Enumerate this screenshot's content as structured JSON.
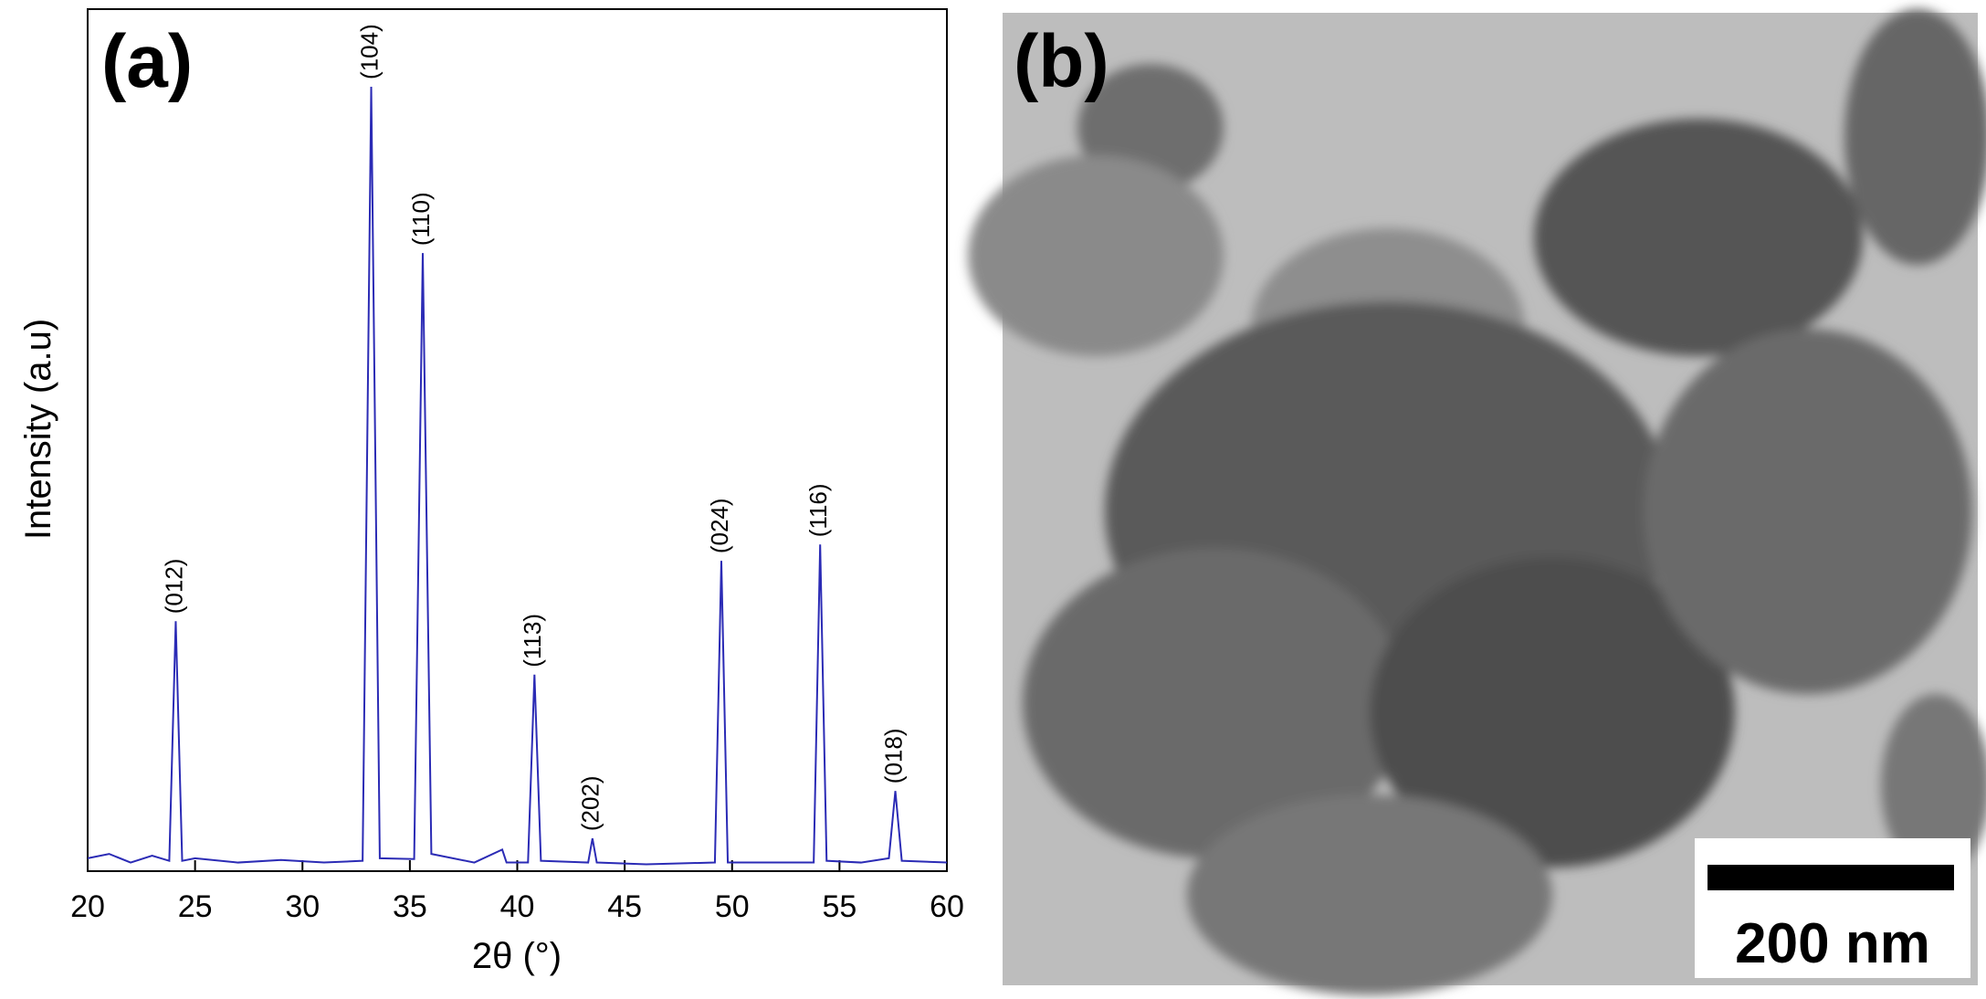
{
  "chart_data": {
    "type": "line",
    "panel_label": "(a)",
    "xlabel": "2θ (°)",
    "ylabel": "Intensity (a.u)",
    "x": [
      20,
      21,
      22,
      23,
      23.8,
      24.1,
      24.4,
      25,
      27,
      29,
      31,
      32.8,
      33.2,
      33.6,
      35.2,
      35.6,
      36.0,
      38,
      39.3,
      39.5,
      40.5,
      40.8,
      41.1,
      43.3,
      43.5,
      43.7,
      46,
      49.2,
      49.5,
      49.8,
      52,
      53.8,
      54.1,
      54.4,
      56,
      57.3,
      57.6,
      57.9,
      60
    ],
    "series": [
      {
        "color": "#2b2bb5",
        "values": [
          1.5,
          2,
          1,
          1.8,
          1.2,
          29,
          1.2,
          1.5,
          1,
          1.3,
          1,
          1.2,
          91,
          1.5,
          1.4,
          71.7,
          2,
          1,
          2.5,
          1,
          1,
          22.8,
          1.2,
          1,
          3.8,
          1,
          0.8,
          1,
          36,
          1,
          1,
          1,
          37.9,
          1.2,
          1,
          1.5,
          9.3,
          1.2,
          1
        ]
      }
    ],
    "annotations": [
      {
        "text": "(012)",
        "x": 24.1
      },
      {
        "text": "(104)",
        "x": 33.2
      },
      {
        "text": "(110)",
        "x": 35.6
      },
      {
        "text": "(113)",
        "x": 40.8
      },
      {
        "text": "(202)",
        "x": 43.5
      },
      {
        "text": "(024)",
        "x": 49.5
      },
      {
        "text": "(116)",
        "x": 54.1
      },
      {
        "text": "(018)",
        "x": 57.6
      }
    ],
    "xlim": [
      20,
      60
    ],
    "xticks": [
      20,
      25,
      30,
      35,
      40,
      45,
      50,
      55,
      60
    ],
    "ylim": [
      0,
      100
    ]
  },
  "image_panel": {
    "panel_label": "(b)",
    "scale_bar": "200 nm"
  }
}
